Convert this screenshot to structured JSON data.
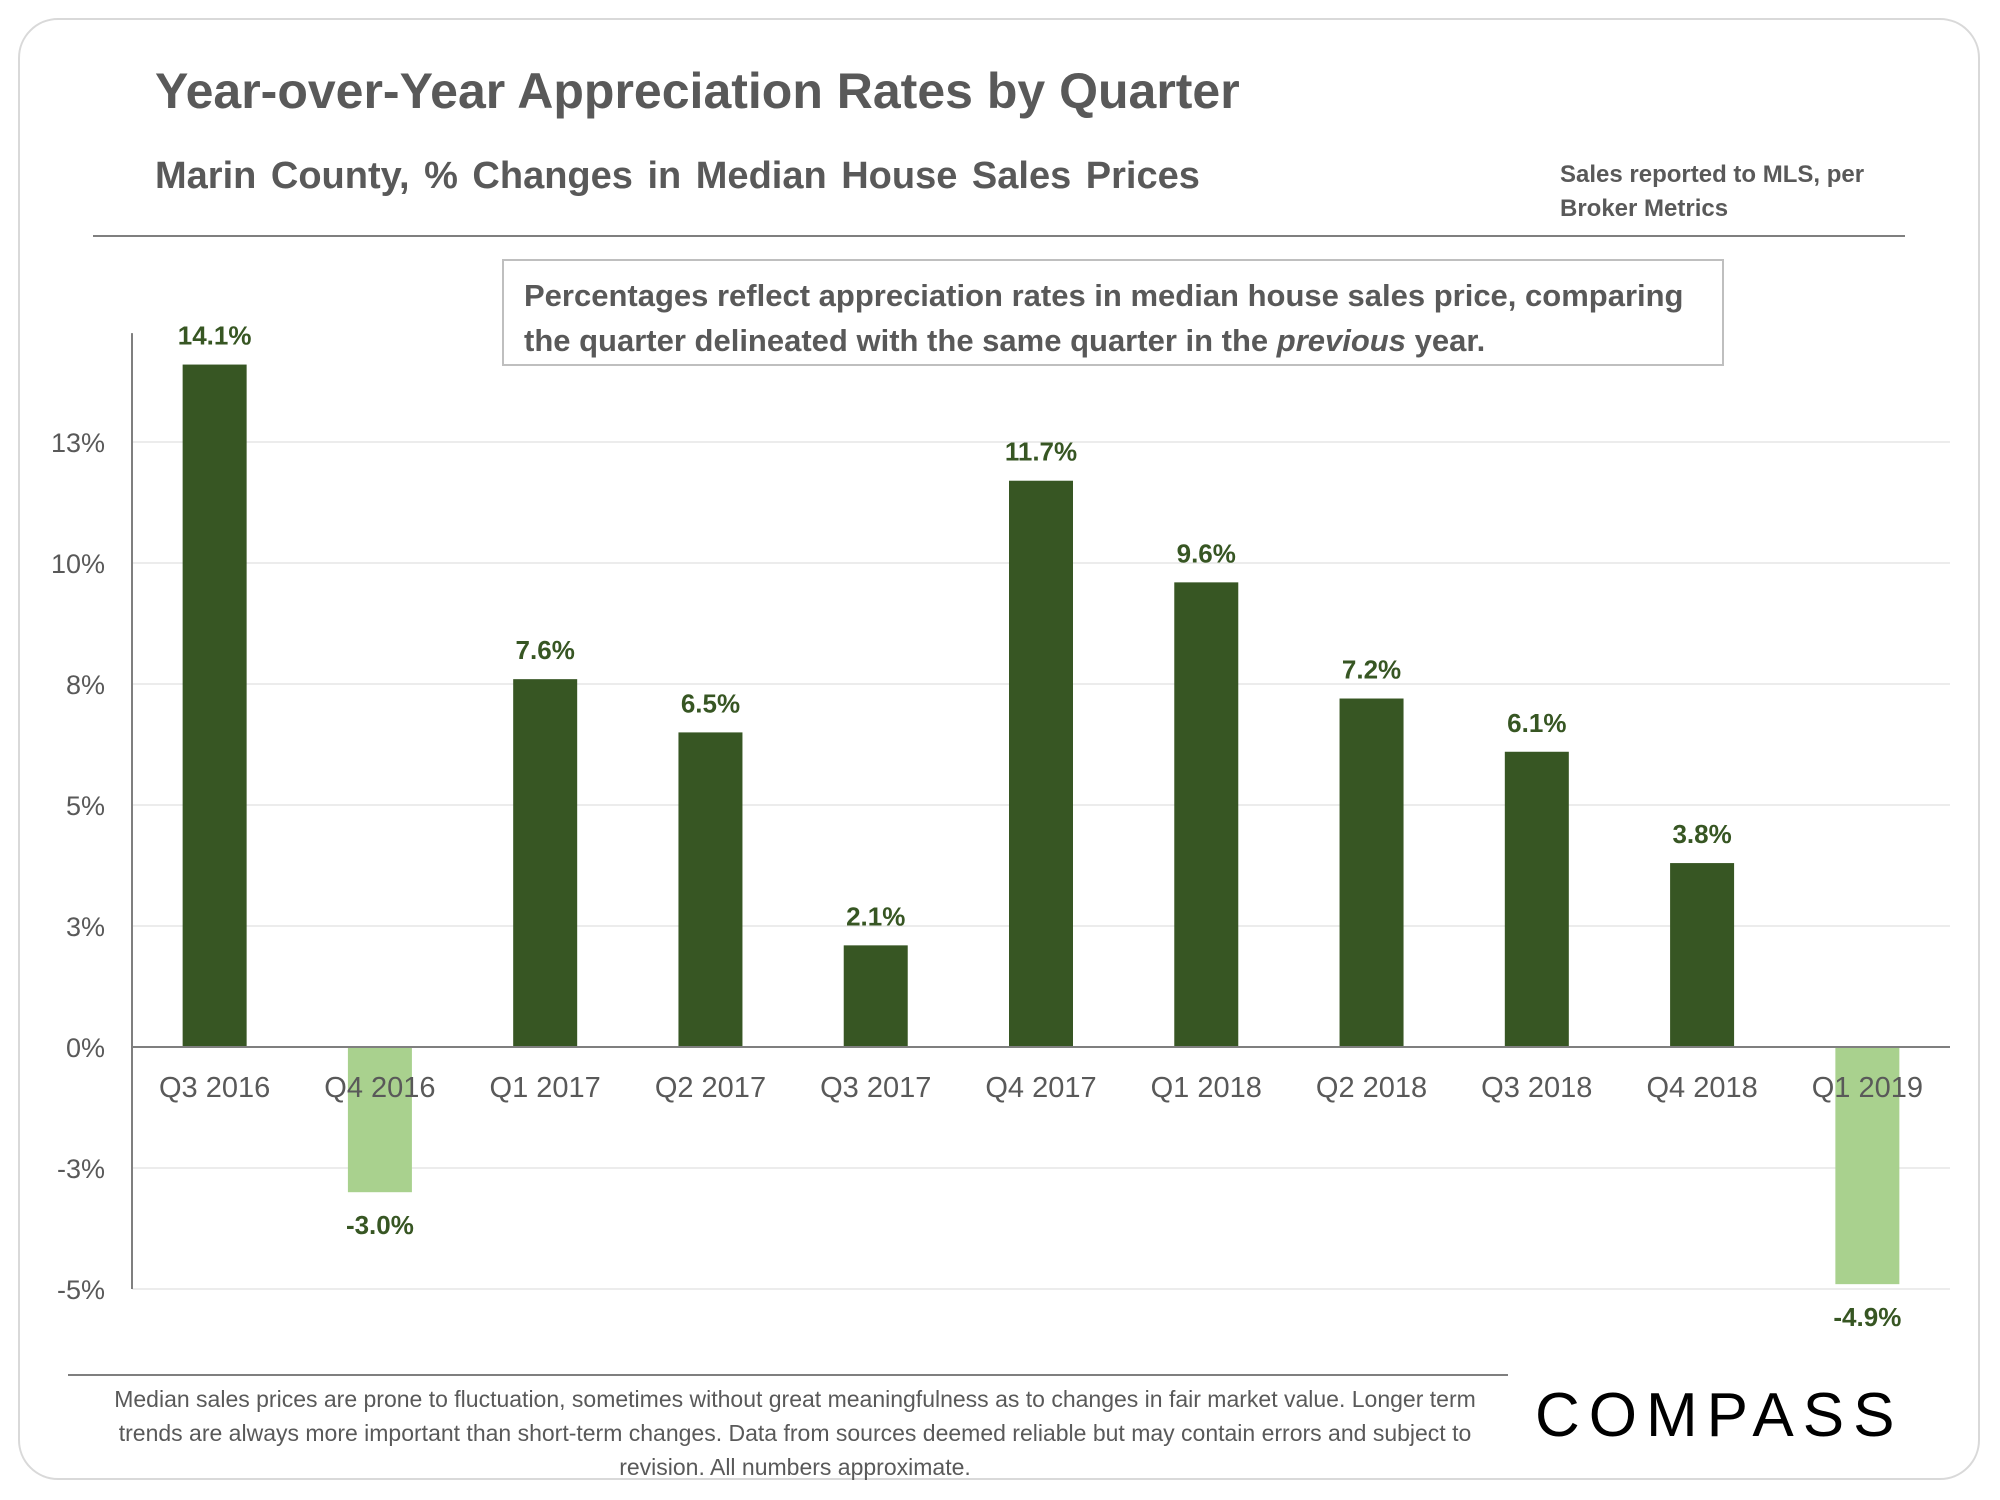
{
  "header": {
    "title": "Year-over-Year Appreciation Rates by Quarter",
    "subtitle": "Marin County, % Changes in Median House Sales Prices",
    "source": "Sales reported to MLS, per Broker Metrics"
  },
  "note": {
    "text_before": "Percentages reflect appreciation rates in median house sales price, comparing the quarter delineated with the same quarter in the ",
    "text_emphasis": "previous",
    "text_after": " year."
  },
  "footer": {
    "disclaimer": "Median sales prices are prone to fluctuation, sometimes without great meaningfulness as to changes in fair market value. Longer term trends are always more important than short-term changes. Data from sources deemed reliable but may contain errors and subject to revision. All numbers approximate."
  },
  "brand": {
    "logo_text": "COMPASS"
  },
  "colors": {
    "positive": "#375623",
    "negative": "#a9d18e",
    "label": "#375623",
    "grid": "#ececec",
    "axis": "#7f7f7f"
  },
  "chart_data": {
    "type": "bar",
    "categories": [
      "Q3 2016",
      "Q4 2016",
      "Q1 2017",
      "Q2 2017",
      "Q3 2017",
      "Q4 2017",
      "Q1 2018",
      "Q2 2018",
      "Q3 2018",
      "Q4 2018",
      "Q1 2019"
    ],
    "values": [
      14.1,
      -3.0,
      7.6,
      6.5,
      2.1,
      11.7,
      9.6,
      7.2,
      6.1,
      3.8,
      -4.9
    ],
    "data_labels": [
      "14.1%",
      "-3.0%",
      "7.6%",
      "6.5%",
      "2.1%",
      "11.7%",
      "9.6%",
      "7.2%",
      "6.1%",
      "3.8%",
      "-4.9%"
    ],
    "yticks": [
      12.5,
      10,
      7.5,
      5,
      2.5,
      0,
      -2.5,
      -5
    ],
    "ytick_labels": [
      "13%",
      "10%",
      "8%",
      "5%",
      "3%",
      "0%",
      "-3%",
      "-5%"
    ],
    "ylim": [
      -5,
      14.75
    ],
    "grid": true,
    "legend": "none"
  }
}
